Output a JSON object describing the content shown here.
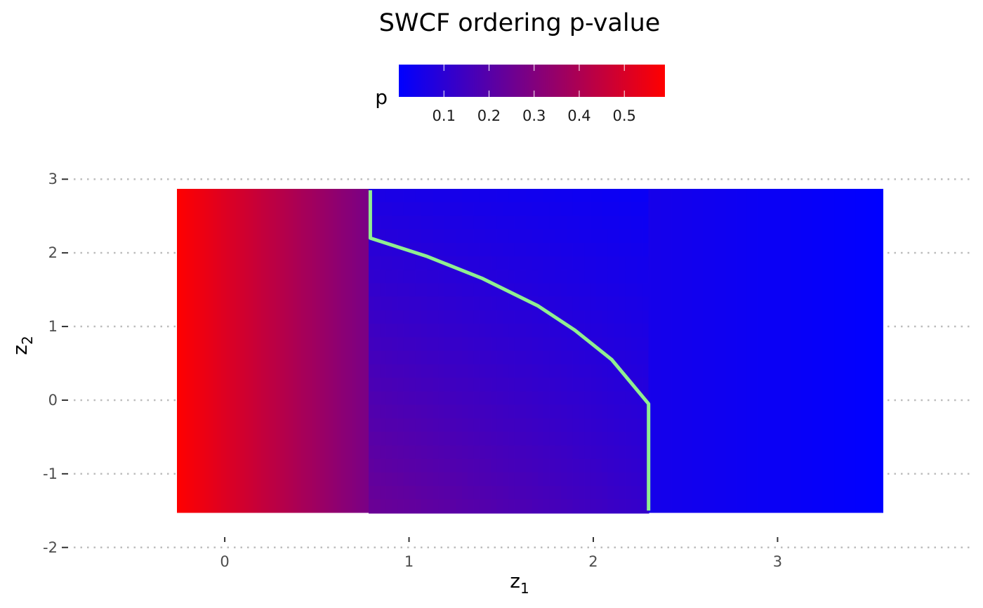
{
  "chart_data": {
    "type": "heatmap",
    "title": "SWCF ordering p-value",
    "xlabel": {
      "base": "z",
      "sub": "1"
    },
    "ylabel": {
      "base": "z",
      "sub": "2"
    },
    "xlim": [
      -0.85,
      4.05
    ],
    "ylim": [
      -2.05,
      3.05
    ],
    "x_ticks": [
      0,
      1,
      2,
      3
    ],
    "x_tick_labels": [
      "0",
      "1",
      "2",
      "3"
    ],
    "y_ticks": [
      -2,
      -1,
      0,
      1,
      2,
      3
    ],
    "y_tick_labels": [
      "-2",
      "-1",
      "0",
      "1",
      "2",
      "3"
    ],
    "grid": "horizontal dotted",
    "legend": {
      "title": "p",
      "placement": "top",
      "range": [
        0.0,
        0.59
      ],
      "ticks": [
        0.1,
        0.2,
        0.3,
        0.4,
        0.5
      ],
      "tick_labels": [
        "0.1",
        "0.2",
        "0.3",
        "0.4",
        "0.5"
      ],
      "low_color": "#0000ff",
      "high_color": "#ff0000"
    },
    "heatmap_extent": {
      "x": [
        -0.26,
        3.57
      ],
      "y": [
        -1.53,
        2.87
      ]
    },
    "heatmap_regions": [
      {
        "x": [
          -0.26,
          0.78
        ],
        "p_at_x": [
          [
            -0.26,
            0.59
          ],
          [
            0.78,
            0.28
          ]
        ]
      },
      {
        "x": [
          0.78,
          2.3
        ],
        "p_at_corners": {
          "left_bottom": 0.25,
          "left_top": 0.06,
          "right_bottom": 0.12,
          "right_top": 0.02
        }
      },
      {
        "x": [
          2.3,
          3.57
        ],
        "p_at_x": [
          [
            2.3,
            0.05
          ],
          [
            3.57,
            0.0
          ]
        ]
      }
    ],
    "series": [
      {
        "type": "line",
        "color": "#90ee90",
        "x": [
          0.79,
          0.79,
          1.1,
          1.4,
          1.7,
          1.9,
          2.1,
          2.3,
          2.3
        ],
        "y": [
          2.85,
          2.2,
          1.95,
          1.65,
          1.28,
          0.95,
          0.55,
          -0.05,
          -1.5
        ]
      }
    ]
  }
}
